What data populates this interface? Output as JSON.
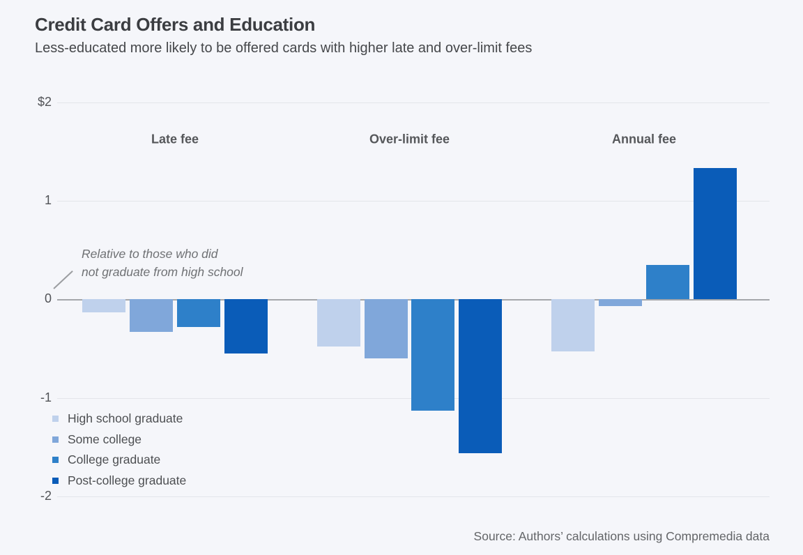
{
  "header": {
    "title": "Credit Card Offers and Education",
    "subtitle": "Less-educated more likely to be offered cards with higher late and over-limit fees"
  },
  "chart_data": {
    "type": "bar",
    "title": "Credit Card Offers and Education",
    "subtitle": "Less-educated more likely to be offered cards with higher late and over-limit fees",
    "categories": [
      "Late fee",
      "Over-limit fee",
      "Annual fee"
    ],
    "series": [
      {
        "name": "High school graduate",
        "color": "#bfd1ec",
        "values": [
          -0.13,
          -0.48,
          -0.53
        ]
      },
      {
        "name": "Some college",
        "color": "#80a7da",
        "values": [
          -0.33,
          -0.6,
          -0.07
        ]
      },
      {
        "name": "College graduate",
        "color": "#2e80c9",
        "values": [
          -0.28,
          -1.13,
          0.35
        ]
      },
      {
        "name": "Post-college graduate",
        "color": "#0a5cb8",
        "values": [
          -0.55,
          -1.56,
          1.33
        ]
      }
    ],
    "ylim": [
      -2,
      2
    ],
    "yticks": [
      {
        "label": "$2",
        "value": 2
      },
      {
        "label": "1",
        "value": 1
      },
      {
        "label": "0",
        "value": 0
      },
      {
        "label": "-1",
        "value": -1
      },
      {
        "label": "-2",
        "value": -2
      }
    ],
    "unit": "dollars",
    "grid": "horizontal",
    "legend_position": "bottom-left",
    "annotation": "Relative to those who did not graduate from high school",
    "annotation_lines": [
      "Relative to those who did",
      "not graduate from high school"
    ]
  },
  "source": "Source: Authors’ calculations using Compremedia data",
  "colors": {
    "background": "#f5f6fa",
    "gridline": "#e3e5ea",
    "zero_line": "#a4a6aa",
    "title_text": "#3b3d41",
    "body_text": "#4d4f52"
  }
}
